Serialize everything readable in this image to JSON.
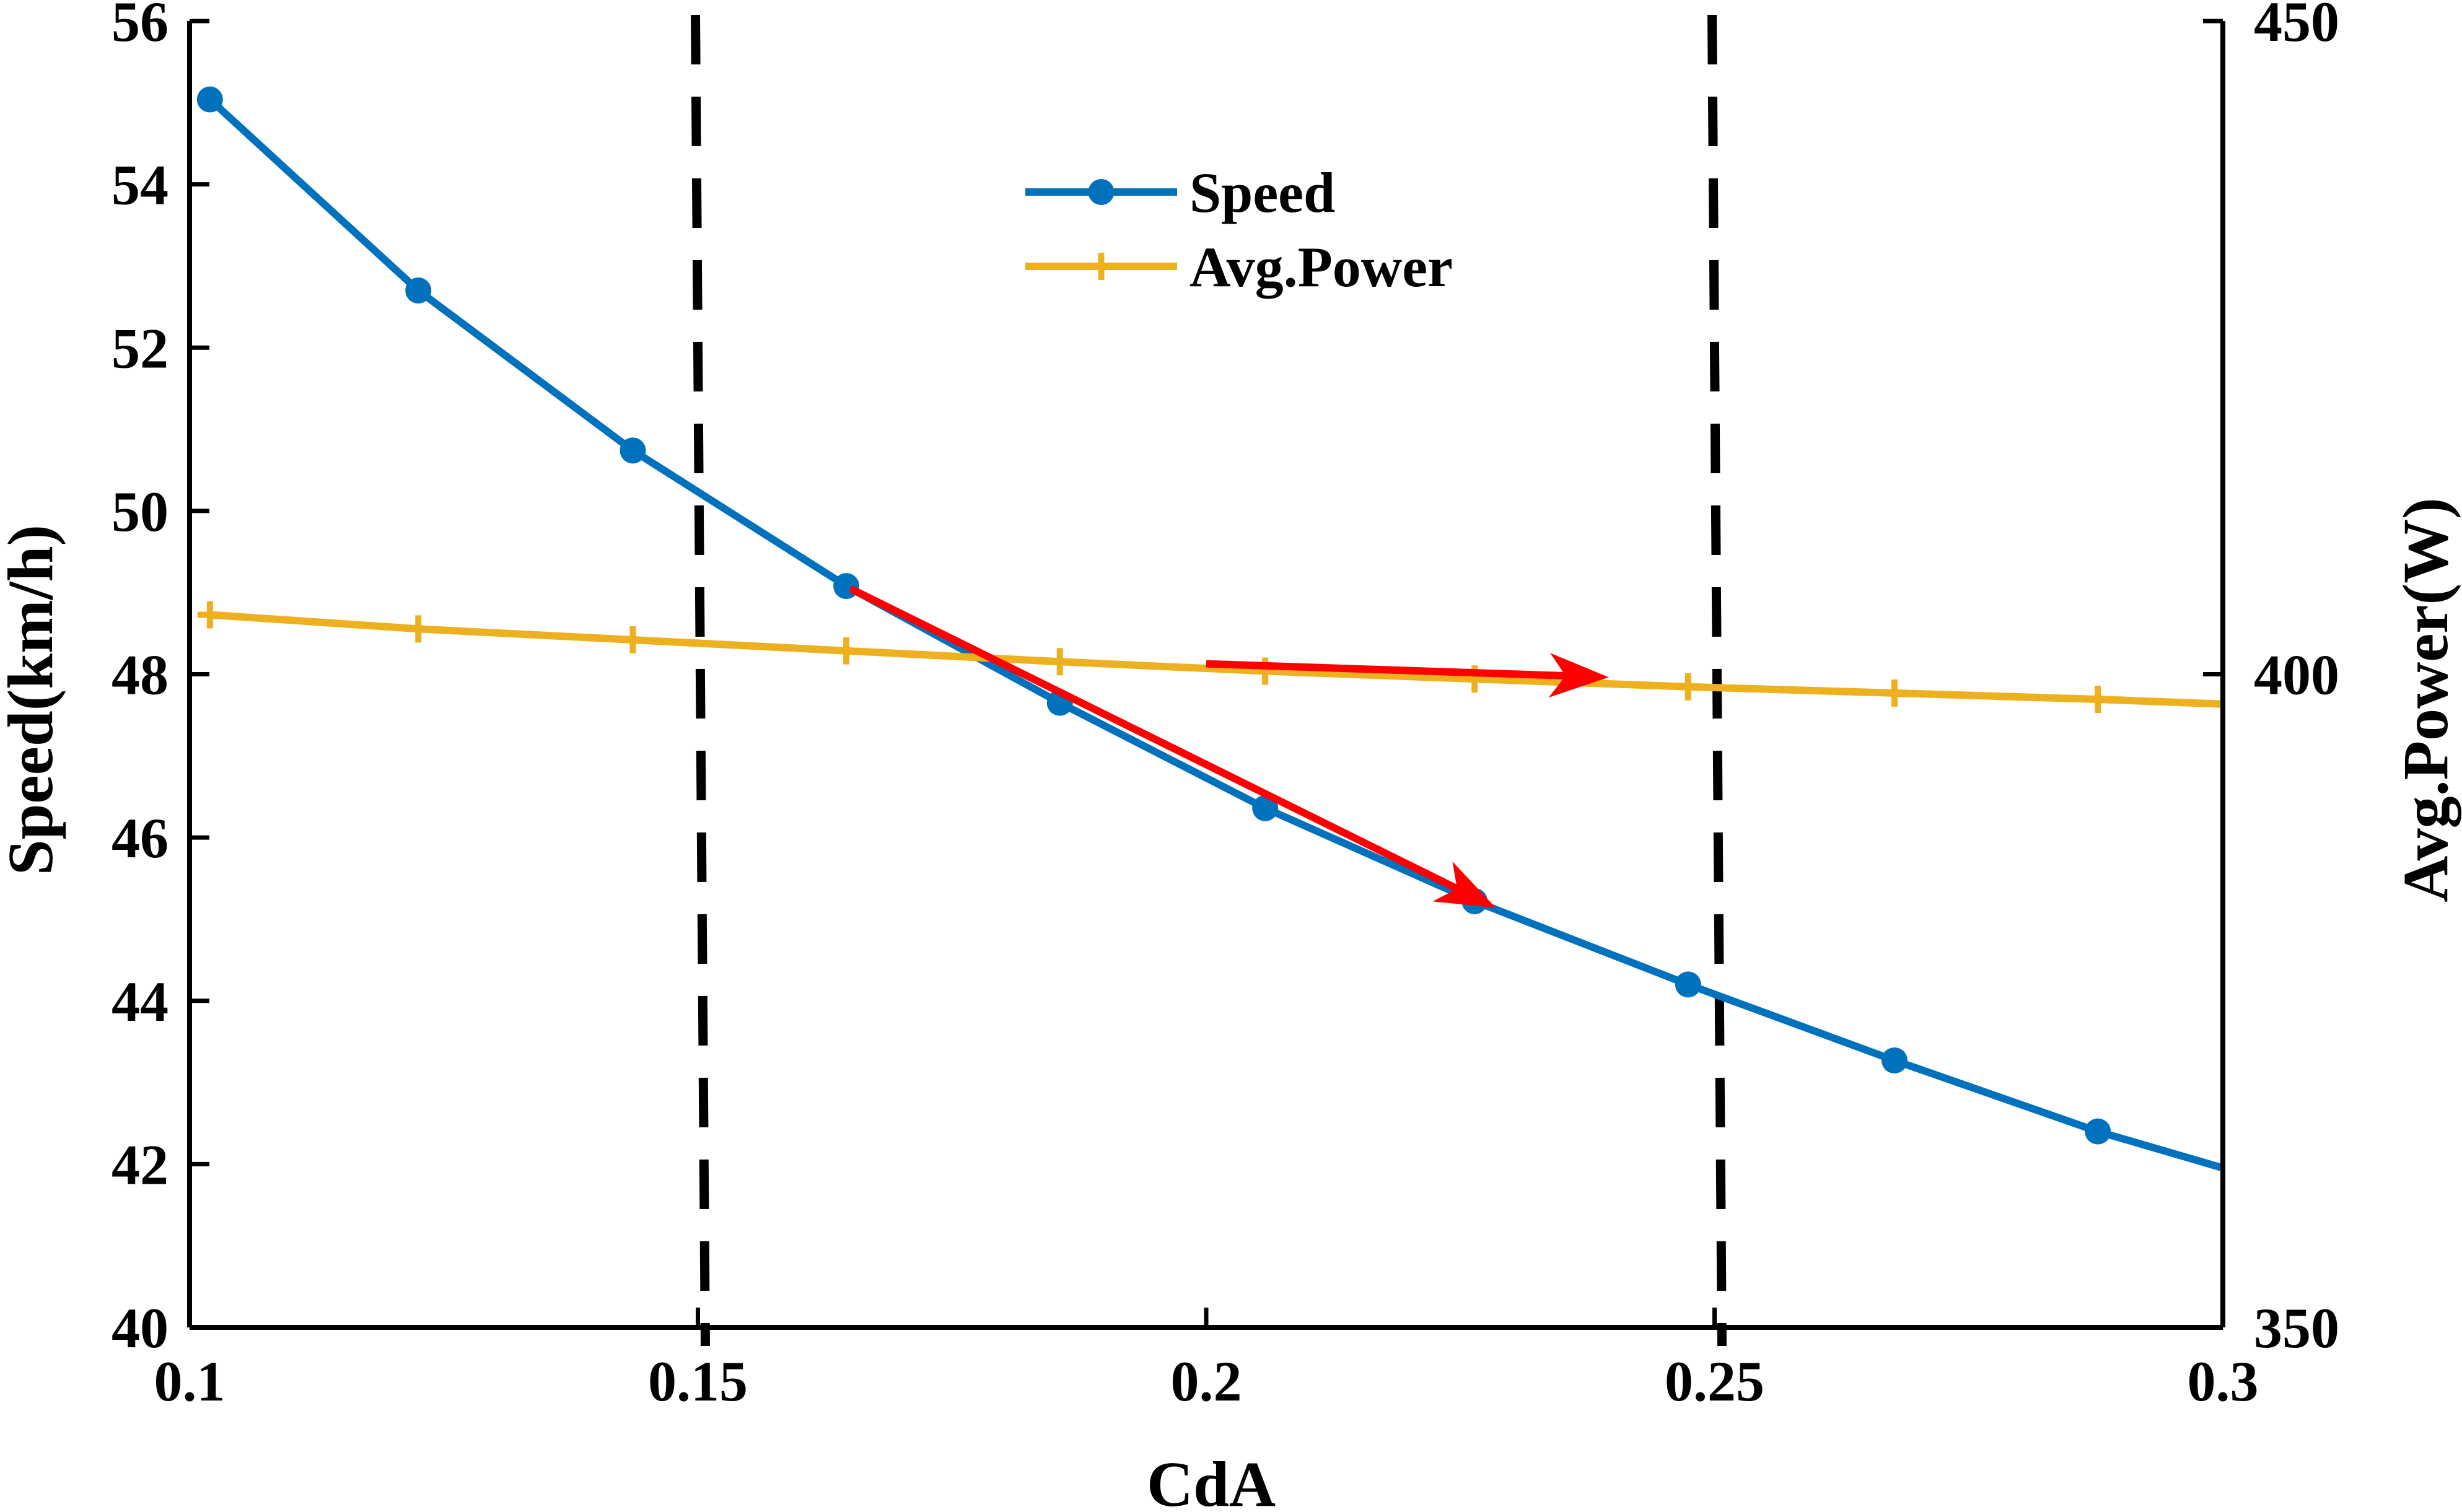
{
  "chart_data": {
    "type": "line",
    "xlabel": "CdA",
    "ylabel": "Speed(km/h)",
    "y2label": "Avg.Power(W)",
    "xlim": [
      0.1,
      0.3
    ],
    "ylim": [
      40,
      56
    ],
    "y2lim": [
      350,
      450
    ],
    "x_ticks": [
      "0.1",
      "0.15",
      "0.2",
      "0.25",
      "0.3"
    ],
    "y_ticks": [
      "40",
      "42",
      "44",
      "46",
      "48",
      "50",
      "52",
      "54",
      "56"
    ],
    "y2_ticks": [
      "350",
      "400",
      "450"
    ],
    "grid": false,
    "legend_position": "top-center",
    "series": [
      {
        "name": "Speed",
        "axis": "left",
        "marker": "circle",
        "color": "#0072BD",
        "x": [
          0.102,
          0.1225,
          0.1436,
          0.1646,
          0.1856,
          0.2058,
          0.2264,
          0.2474,
          0.2677,
          0.2877,
          0.2998
        ],
        "y": [
          55.04,
          52.7,
          50.74,
          49.08,
          47.65,
          46.36,
          45.22,
          44.2,
          43.27,
          42.4,
          41.96
        ]
      },
      {
        "name": "Avg.Power",
        "axis": "right",
        "marker": "plus",
        "color": "#EDB120",
        "x": [
          0.102,
          0.1225,
          0.1436,
          0.1646,
          0.1856,
          0.2058,
          0.2264,
          0.2474,
          0.2677,
          0.2877,
          0.2998
        ],
        "y": [
          404.55,
          403.47,
          402.63,
          401.79,
          400.96,
          400.24,
          399.64,
          399.04,
          398.56,
          398.08,
          397.72
        ]
      }
    ],
    "reference_lines": [
      {
        "axis": "x",
        "value": 0.15,
        "style": "dashed",
        "color": "#000000"
      },
      {
        "axis": "x",
        "value": 0.25,
        "style": "dashed",
        "color": "#000000"
      }
    ],
    "annotations": [
      {
        "type": "arrow",
        "color": "#FF0000",
        "axis": "left",
        "from": [
          0.165,
          49.05
        ],
        "to": [
          0.2275,
          45.2
        ]
      },
      {
        "type": "arrow",
        "color": "#FF0000",
        "axis": "right",
        "from": [
          0.2,
          400.8
        ],
        "to": [
          0.2385,
          399.8
        ]
      }
    ]
  }
}
